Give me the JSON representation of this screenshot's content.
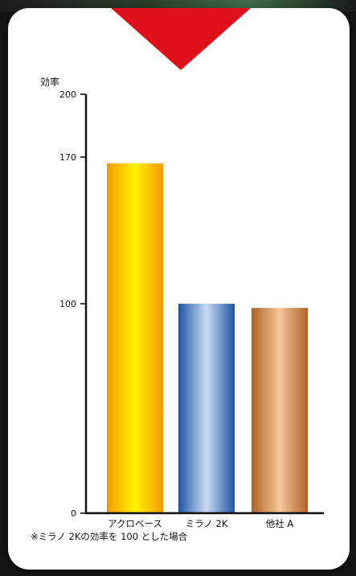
{
  "chart_data": {
    "type": "bar",
    "ylabel": "効率",
    "ylim": [
      0,
      200
    ],
    "yticks": [
      {
        "value": 200,
        "label": "200"
      },
      {
        "value": 170,
        "label": "170"
      },
      {
        "value": 100,
        "label": "100"
      },
      {
        "value": 0,
        "label": "0"
      }
    ],
    "categories": [
      "アクロベース",
      "ミラノ 2K",
      "他社 A"
    ],
    "values": [
      167,
      100,
      98
    ],
    "bar_colors": [
      {
        "edge": "#f29a00",
        "mid": "#fff200"
      },
      {
        "edge": "#1f55a3",
        "mid": "#c9dcf4"
      },
      {
        "edge": "#b0602a",
        "mid": "#f2c896"
      }
    ],
    "grid": false,
    "legend": "none"
  },
  "footnote": "※ミラノ 2Kの効率を 100 とした場合",
  "colors": {
    "arrow": "#e0101a",
    "axis": "#111111",
    "background": "#141414",
    "card": "#ffffff"
  }
}
